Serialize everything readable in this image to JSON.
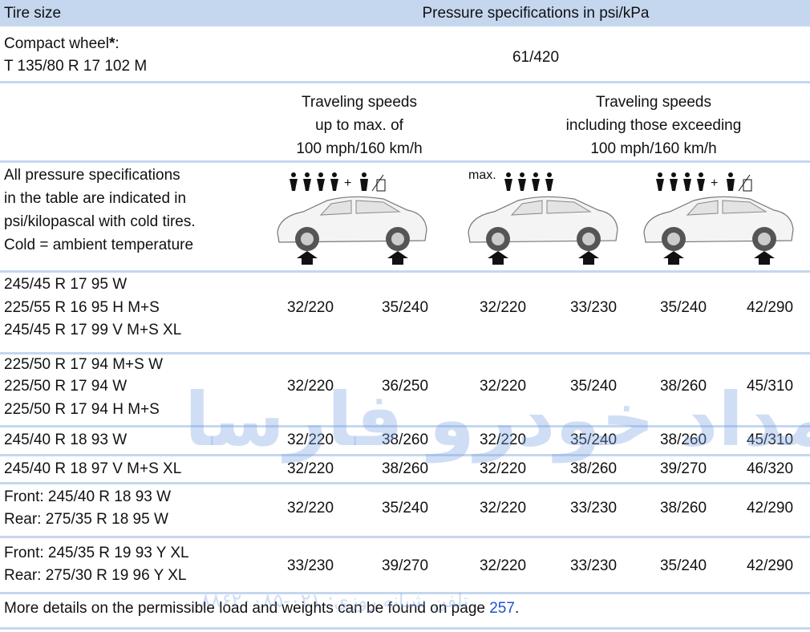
{
  "header": {
    "tire_size": "Tire size",
    "pressure": "Pressure specifications in psi/kPa"
  },
  "compact_wheel": {
    "name": "Compact wheel",
    "asterisk": "*",
    "colon": ":",
    "size": "T 135/80 R 17 102 M",
    "pressure": "61/420"
  },
  "speed_headers": [
    [
      "Traveling speeds",
      "up to max. of",
      "100 mph/160 km/h"
    ],
    [
      "Traveling speeds",
      "including those exceeding",
      "100 mph/160 km/h"
    ]
  ],
  "notes": [
    "All pressure specifications",
    "in the table are indicated in",
    "psi/kilopascal with cold tires.",
    "Cold = ambient temperature"
  ],
  "load_icons": {
    "max_label": "max.",
    "plus": "+"
  },
  "rows": [
    {
      "tires": [
        "245/45 R 17 95 W",
        "225/55 R 16 95 H M+S",
        "245/45 R 17 99 V M+S XL"
      ],
      "pressures": [
        "32/220",
        "35/240",
        "32/220",
        "33/230",
        "35/240",
        "42/290"
      ]
    },
    {
      "tires": [
        "225/50 R 17 94 M+S W",
        "225/50 R 17 94 W",
        "225/50 R 17 94 H M+S"
      ],
      "pressures": [
        "32/220",
        "36/250",
        "32/220",
        "35/240",
        "38/260",
        "45/310"
      ]
    },
    {
      "tires": [
        "245/40 R 18 93 W"
      ],
      "pressures": [
        "32/220",
        "38/260",
        "32/220",
        "35/240",
        "38/260",
        "45/310"
      ]
    },
    {
      "tires": [
        "245/40 R 18 97 V M+S XL"
      ],
      "pressures": [
        "32/220",
        "38/260",
        "32/220",
        "38/260",
        "39/270",
        "46/320"
      ]
    },
    {
      "tires": [
        "Front: 245/40 R 18 93 W",
        "Rear: 275/35 R 18 95 W"
      ],
      "pressures": [
        "32/220",
        "35/240",
        "32/220",
        "33/230",
        "38/260",
        "42/290"
      ]
    },
    {
      "tires": [
        "Front: 245/35 R 19 93 Y XL",
        "Rear: 275/30 R 19 96 Y XL"
      ],
      "pressures": [
        "33/230",
        "39/270",
        "32/220",
        "33/230",
        "35/240",
        "42/290"
      ]
    }
  ],
  "footer": {
    "text": "More details on the permissible load and weights can be found on page ",
    "page": "257",
    "end": "."
  },
  "watermark": {
    "brand": "امداد خودرو فارسا",
    "phone": "تلفن شبانه روزی: ۰۲۱-۸۸۶۲۰۰۸۵"
  }
}
